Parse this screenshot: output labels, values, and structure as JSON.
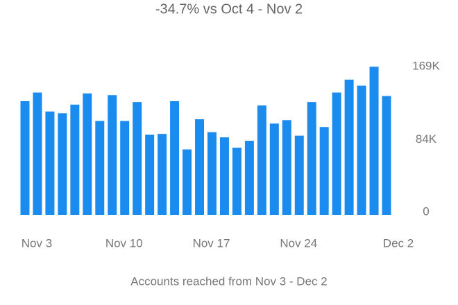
{
  "chart_data": {
    "type": "bar",
    "title": "-34.7% vs Oct 4 - Nov 2",
    "caption": "Accounts reached from Nov 3 - Dec 2",
    "categories": [
      "Nov 3",
      null,
      null,
      null,
      null,
      null,
      null,
      "Nov 10",
      null,
      null,
      null,
      null,
      null,
      null,
      "Nov 17",
      null,
      null,
      null,
      null,
      null,
      null,
      "Nov 24",
      null,
      null,
      null,
      null,
      null,
      null,
      null,
      "Dec 2"
    ],
    "values": [
      132000,
      142000,
      120000,
      118000,
      128000,
      141000,
      109000,
      139000,
      109000,
      131000,
      93000,
      94000,
      132000,
      76000,
      111000,
      96000,
      90000,
      78000,
      86000,
      127000,
      106000,
      110000,
      92000,
      131000,
      102000,
      142000,
      157000,
      150000,
      172000,
      138000
    ],
    "color": "#1a8cf0",
    "ylim": [
      0,
      175000
    ],
    "yticks": [
      0,
      {
        "value": 84000,
        "label": "84K"
      },
      {
        "value": 169000,
        "label": "169K"
      }
    ]
  }
}
